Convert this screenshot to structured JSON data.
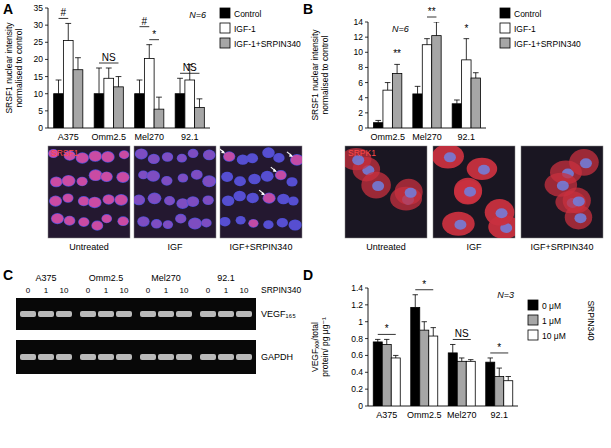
{
  "panel_labels": [
    "A",
    "B",
    "C",
    "D"
  ],
  "chart_data": [
    {
      "type": "bar",
      "ylabel": "SRSF1 nuclear intensity normalised to control",
      "categories": [
        "A375",
        "Omm2.5",
        "Mel270",
        "92.1"
      ],
      "series": [
        {
          "name": "Control",
          "color": "#000000",
          "values": [
            10,
            10,
            10,
            10
          ],
          "errors": [
            4,
            7.5,
            4,
            4.5
          ]
        },
        {
          "name": "IGF-1",
          "color": "#ffffff",
          "values": [
            25.5,
            14.5,
            20.3,
            14
          ],
          "errors": [
            5,
            3,
            4,
            4.5
          ]
        },
        {
          "name": "IGF-1+SRPIN340",
          "color": "#a6a6a6",
          "values": [
            17,
            12,
            5.5,
            6
          ],
          "errors": [
            3.5,
            3,
            3.5,
            2.5
          ]
        }
      ],
      "ylim": [
        0,
        35
      ],
      "yticks": [
        0,
        5,
        10,
        15,
        20,
        25,
        30,
        35
      ],
      "legend": "upper right",
      "annotations": [
        {
          "text": "N=6"
        },
        {
          "text": "#",
          "category": 0,
          "series": [
            0,
            1
          ]
        },
        {
          "text": "NS",
          "category": 1,
          "series": [
            0,
            2
          ]
        },
        {
          "text": "*",
          "category": 2,
          "series": [
            1,
            2
          ]
        },
        {
          "text": "#",
          "category": 2,
          "series": [
            0,
            1
          ]
        },
        {
          "text": "NS",
          "category": 3,
          "series": [
            0,
            2
          ]
        }
      ]
    },
    {
      "type": "bar",
      "ylabel": "SRSF1 nuclear intensity normalised to control",
      "categories": [
        "Omm2.5",
        "Mel270",
        "92.1"
      ],
      "series": [
        {
          "name": "Control",
          "color": "#000000",
          "values": [
            0.7,
            4.5,
            3.2
          ],
          "errors": [
            0.3,
            1,
            0.5
          ]
        },
        {
          "name": "IGF-1",
          "color": "#ffffff",
          "values": [
            5,
            11,
            9
          ],
          "errors": [
            1,
            0.8,
            2.8
          ]
        },
        {
          "name": "IGF-1+SRPIN340",
          "color": "#a6a6a6",
          "values": [
            7.2,
            12.2,
            6.6
          ],
          "errors": [
            1.2,
            1.8,
            0.7
          ]
        }
      ],
      "ylim": [
        0,
        14
      ],
      "yticks": [
        0,
        2,
        4,
        6,
        8,
        10,
        12,
        14
      ],
      "legend": "upper right",
      "annotations": [
        {
          "text": "N=6"
        },
        {
          "text": "**",
          "category": 0,
          "series": [
            2
          ]
        },
        {
          "text": "**",
          "category": 1,
          "series": [
            1,
            2
          ]
        },
        {
          "text": "*",
          "category": 2,
          "series": [
            1
          ]
        }
      ]
    },
    {
      "type": "bar",
      "ylabel": "VEGFₓₓₓ/total protein/ pg μg⁻¹",
      "categories": [
        "A375",
        "Omm2.5",
        "Mel270",
        "92.1"
      ],
      "series": [
        {
          "name": "0 μM",
          "color": "#000000",
          "values": [
            0.76,
            1.17,
            0.63,
            0.52
          ],
          "errors": [
            0.03,
            0.15,
            0.1,
            0.05
          ]
        },
        {
          "name": "1 μM",
          "color": "#a6a6a6",
          "values": [
            0.73,
            0.9,
            0.53,
            0.35
          ],
          "errors": [
            0.06,
            0.1,
            0.04,
            0.1
          ]
        },
        {
          "name": "10 μM",
          "color": "#ffffff",
          "values": [
            0.57,
            0.83,
            0.53,
            0.3
          ],
          "errors": [
            0.03,
            0.1,
            0.02,
            0.05
          ]
        }
      ],
      "ylim": [
        0,
        1.4
      ],
      "yticks": [
        0,
        0.2,
        0.4,
        0.6,
        0.8,
        1,
        1.2,
        1.4
      ],
      "legend": "right",
      "legend_title": "SRPIN340",
      "annotations": [
        {
          "text": "N=3"
        },
        {
          "text": "*",
          "category": 0,
          "series": [
            0,
            2
          ]
        },
        {
          "text": "*",
          "category": 1,
          "series": [
            0,
            2
          ]
        },
        {
          "text": "NS",
          "category": 2,
          "series": [
            0,
            2
          ]
        },
        {
          "text": "*",
          "category": 3,
          "series": [
            0,
            2
          ]
        }
      ]
    }
  ],
  "images": [
    {
      "stain": "SRSF1",
      "captions": [
        "Untreated",
        "IGF",
        "IGF+SRPIN340"
      ]
    },
    {
      "stain": "SRPK1",
      "captions": [
        "Untreated",
        "IGF",
        "IGF+SRPIN340"
      ]
    }
  ],
  "gel": {
    "columns": [
      "A375",
      "Omm2.5",
      "Mel270",
      "92.1"
    ],
    "lanes": [
      0,
      1,
      10
    ],
    "treatment": "SRPIN340",
    "bands": [
      "VEGF₁₆₅",
      "GAPDH"
    ]
  }
}
